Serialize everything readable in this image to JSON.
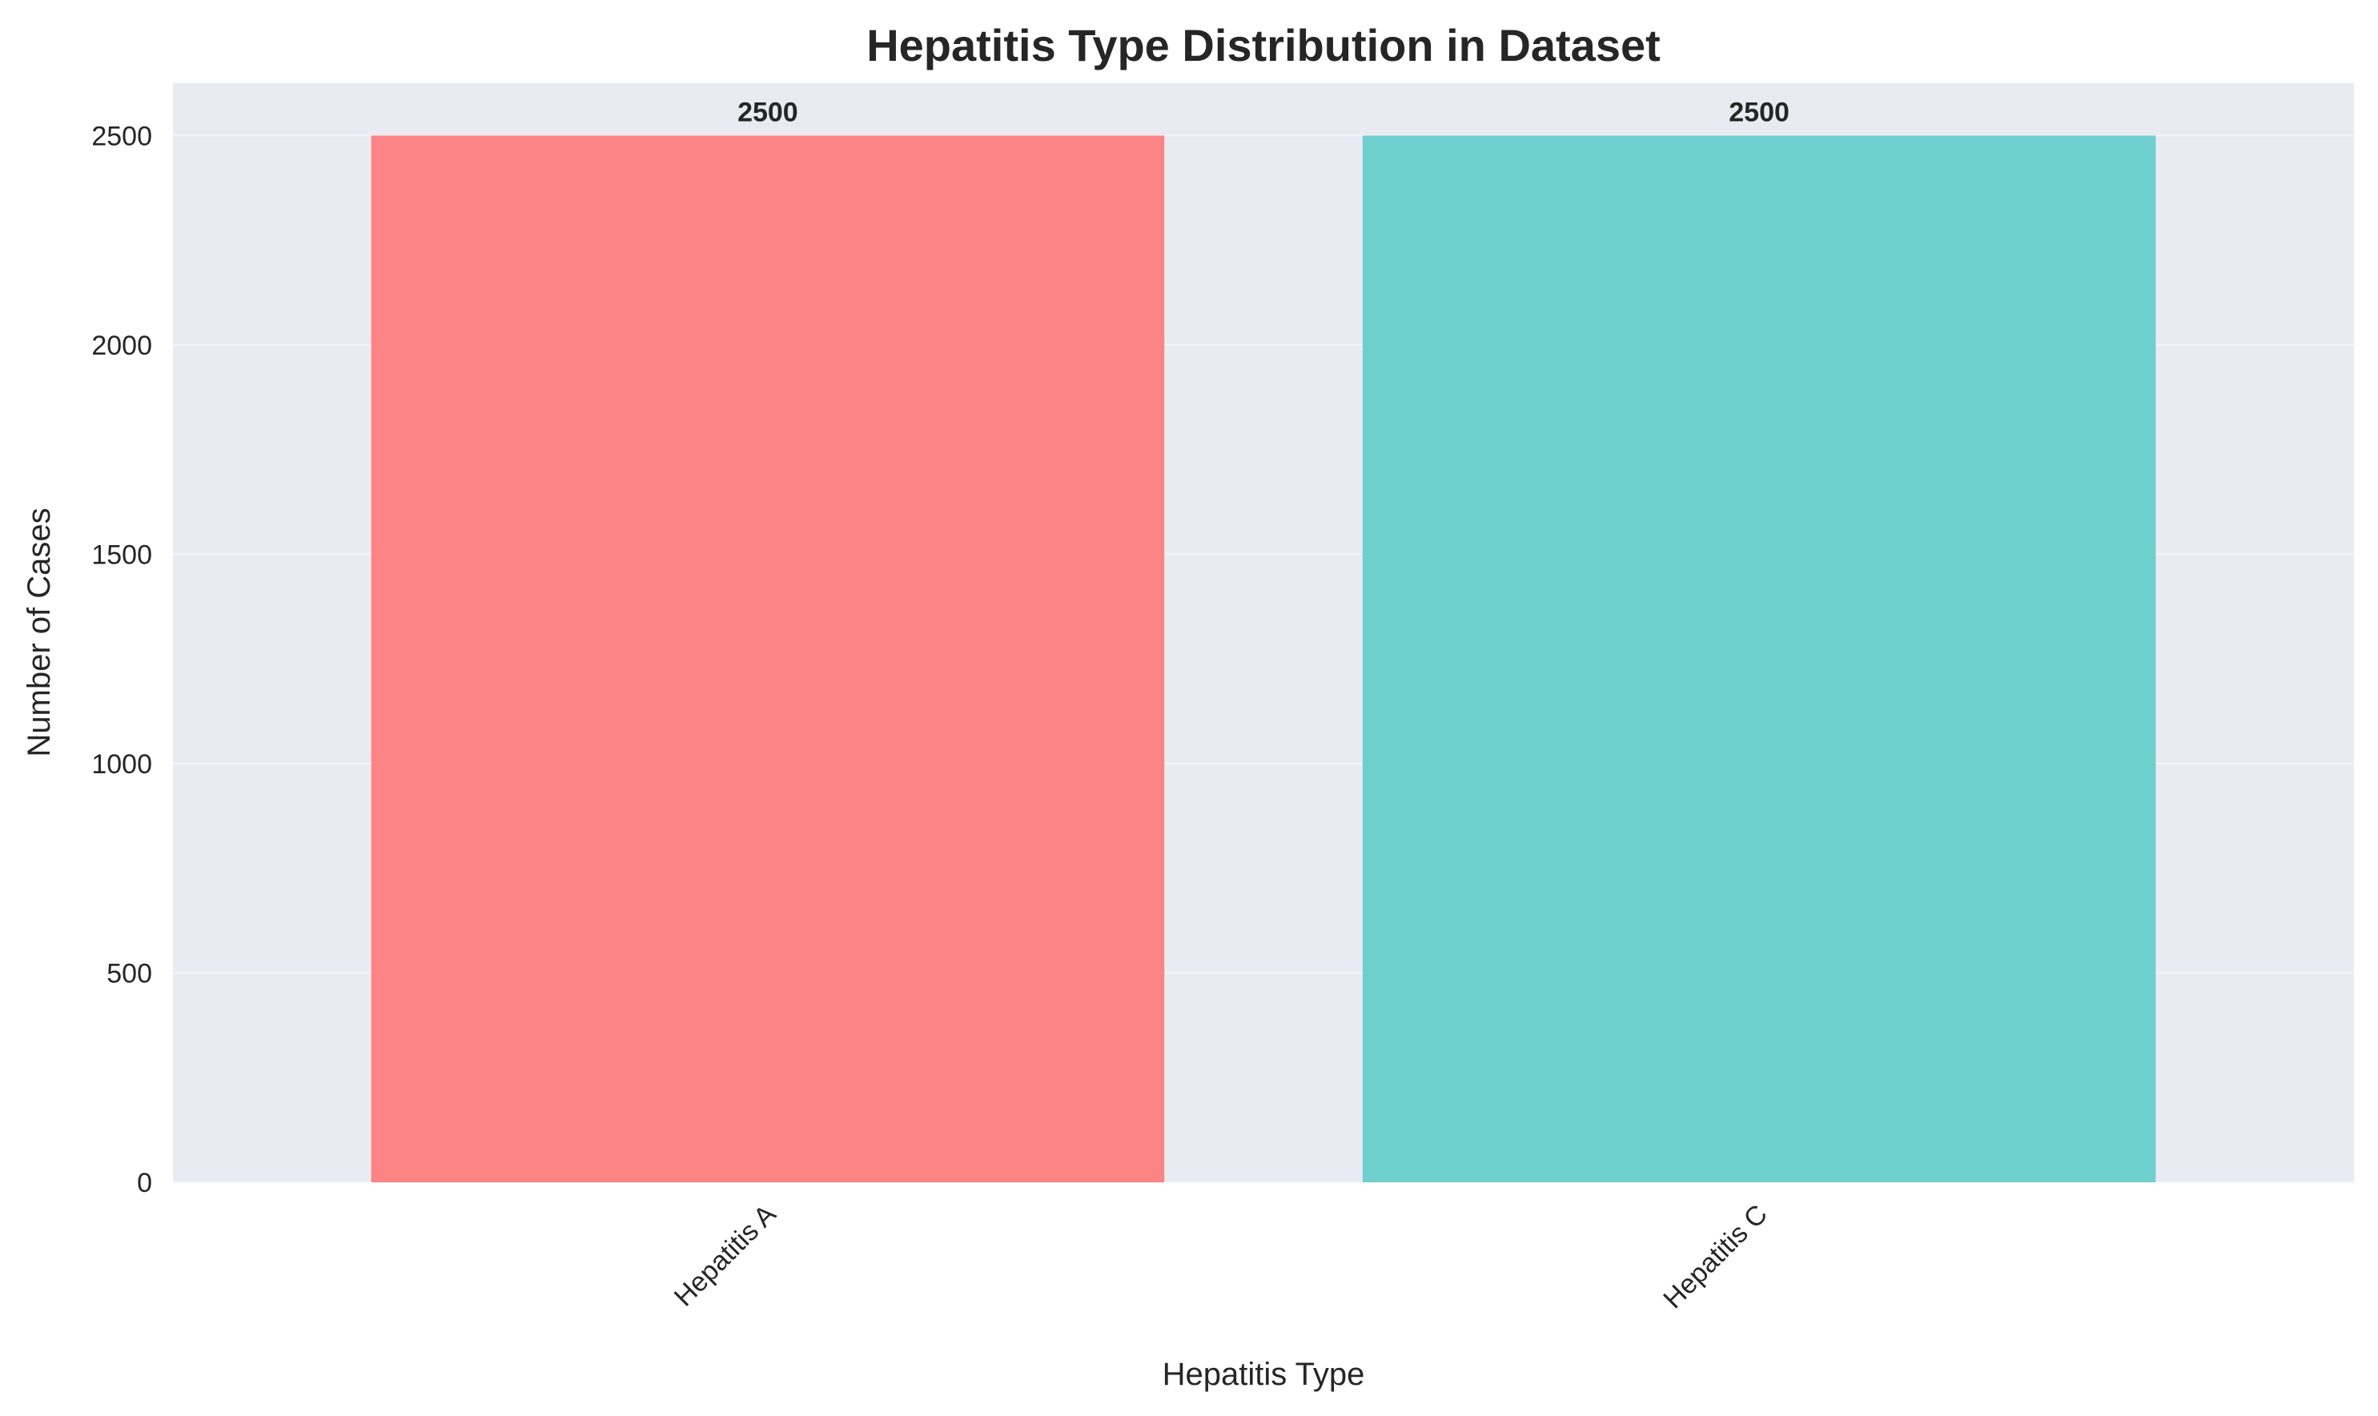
{
  "chart_data": {
    "type": "bar",
    "title": "Hepatitis Type Distribution in Dataset",
    "xlabel": "Hepatitis Type",
    "ylabel": "Number of Cases",
    "categories": [
      "Hepatitis A",
      "Hepatitis C"
    ],
    "values": [
      2500,
      2500
    ],
    "data_labels": [
      "2500",
      "2500"
    ],
    "colors": [
      "#FC8484",
      "#6FD0CD"
    ],
    "ylim": [
      0,
      2625
    ],
    "yticks": [
      0,
      500,
      1000,
      1500,
      2000,
      2500
    ],
    "grid": true,
    "legend": "none",
    "background_color": "#EAEAF2",
    "grid_color": "#F5F5F9"
  }
}
